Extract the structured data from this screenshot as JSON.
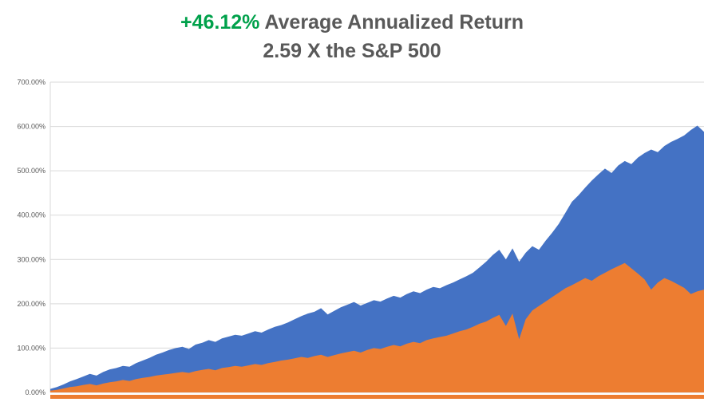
{
  "title": {
    "highlight": "+46.12%",
    "rest": " Average Annualized Return",
    "line2": "2.59 X the S&P 500"
  },
  "colors": {
    "title_text": "#595959",
    "title_highlight": "#00A14B",
    "gridline": "#D9D9D9",
    "axis_line": "#D9D9D9",
    "blue_series": "#4472C4",
    "orange_series": "#ED7D31",
    "x_axis_strip": "#ED7D31",
    "tick_text": "#595959"
  },
  "chart_data": {
    "type": "area",
    "title": "+46.12% Average Annualized Return 2.59 X the S&P 500",
    "xlabel": "",
    "ylabel": "",
    "ylim": [
      0,
      700
    ],
    "grid": true,
    "legend": "none",
    "y_ticks_values": [
      700,
      600,
      500,
      400,
      300,
      200,
      100,
      0
    ],
    "y_ticks_labels": [
      "700.00%",
      "600.00%",
      "500.00%",
      "400.00%",
      "300.00%",
      "200.00%",
      "100.00%",
      "0.00%"
    ],
    "series": [
      {
        "name": "blue-series",
        "color": "#4472C4",
        "values": [
          8,
          12,
          18,
          25,
          30,
          36,
          42,
          38,
          46,
          52,
          55,
          60,
          58,
          66,
          72,
          78,
          85,
          90,
          96,
          100,
          103,
          98,
          108,
          112,
          118,
          114,
          122,
          126,
          130,
          128,
          133,
          138,
          135,
          142,
          148,
          152,
          158,
          165,
          172,
          178,
          182,
          190,
          176,
          184,
          192,
          198,
          204,
          196,
          202,
          208,
          205,
          212,
          218,
          214,
          222,
          228,
          224,
          232,
          238,
          235,
          242,
          248,
          255,
          262,
          270,
          282,
          295,
          310,
          322,
          300,
          325,
          295,
          315,
          330,
          322,
          342,
          360,
          380,
          405,
          430,
          445,
          462,
          478,
          492,
          505,
          495,
          512,
          522,
          515,
          530,
          540,
          548,
          542,
          556,
          565,
          572,
          580,
          592,
          602,
          588
        ]
      },
      {
        "name": "orange-series",
        "color": "#ED7D31",
        "values": [
          4,
          6,
          9,
          12,
          14,
          17,
          19,
          16,
          20,
          23,
          25,
          28,
          26,
          30,
          33,
          35,
          38,
          40,
          42,
          44,
          46,
          44,
          48,
          51,
          53,
          50,
          55,
          57,
          60,
          58,
          61,
          64,
          62,
          66,
          69,
          72,
          74,
          77,
          80,
          78,
          82,
          85,
          80,
          84,
          88,
          91,
          94,
          90,
          96,
          100,
          98,
          103,
          107,
          104,
          110,
          114,
          111,
          118,
          122,
          125,
          128,
          133,
          138,
          142,
          148,
          155,
          160,
          168,
          175,
          150,
          178,
          120,
          165,
          185,
          195,
          205,
          215,
          225,
          235,
          242,
          250,
          258,
          252,
          262,
          270,
          278,
          285,
          292,
          280,
          268,
          255,
          232,
          248,
          258,
          252,
          244,
          236,
          222,
          228,
          232
        ]
      }
    ]
  }
}
